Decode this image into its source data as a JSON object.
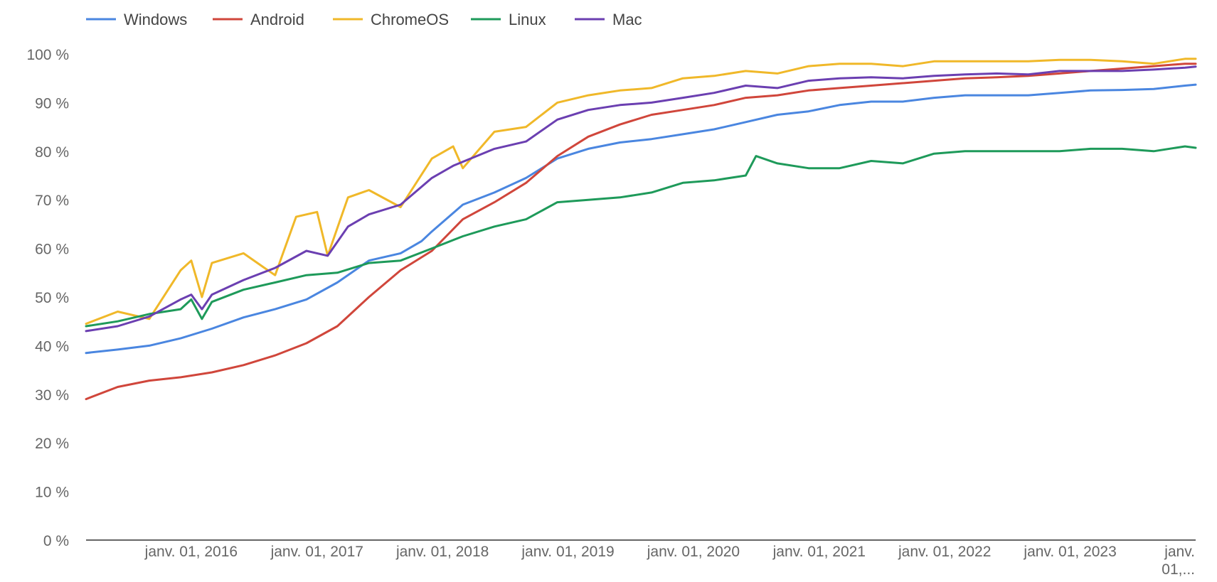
{
  "chart_data": {
    "type": "line",
    "title": "",
    "xlabel": "",
    "ylabel": "",
    "x_range": [
      "2015-03-01",
      "2024-01-01"
    ],
    "ylim": [
      0,
      100
    ],
    "y_unit": "%",
    "grid": false,
    "legend_position": "top-left",
    "y_ticks": [
      {
        "value": 0,
        "label": "0 %"
      },
      {
        "value": 10,
        "label": "10 %"
      },
      {
        "value": 20,
        "label": "20 %"
      },
      {
        "value": 30,
        "label": "30 %"
      },
      {
        "value": 40,
        "label": "40 %"
      },
      {
        "value": 50,
        "label": "50 %"
      },
      {
        "value": 60,
        "label": "60 %"
      },
      {
        "value": 70,
        "label": "70 %"
      },
      {
        "value": 80,
        "label": "80 %"
      },
      {
        "value": 90,
        "label": "90 %"
      },
      {
        "value": 100,
        "label": "100 %"
      }
    ],
    "x_ticks": [
      {
        "date": "2016-01-01",
        "label": "janv. 01, 2016"
      },
      {
        "date": "2017-01-01",
        "label": "janv. 01, 2017"
      },
      {
        "date": "2018-01-01",
        "label": "janv. 01, 2018"
      },
      {
        "date": "2019-01-01",
        "label": "janv. 01, 2019"
      },
      {
        "date": "2020-01-01",
        "label": "janv. 01, 2020"
      },
      {
        "date": "2021-01-01",
        "label": "janv. 01, 2021"
      },
      {
        "date": "2022-01-01",
        "label": "janv. 01, 2022"
      },
      {
        "date": "2023-01-01",
        "label": "janv. 01, 2023"
      },
      {
        "date": "2024-01-01",
        "label": "janv. 01,..."
      }
    ],
    "series": [
      {
        "name": "Windows",
        "color": "#4a86e0",
        "points": [
          [
            "2015-03-01",
            38.5
          ],
          [
            "2015-06-01",
            39.2
          ],
          [
            "2015-09-01",
            40.0
          ],
          [
            "2015-12-01",
            41.5
          ],
          [
            "2016-03-01",
            43.5
          ],
          [
            "2016-06-01",
            45.8
          ],
          [
            "2016-09-01",
            47.5
          ],
          [
            "2016-12-01",
            49.5
          ],
          [
            "2017-03-01",
            53.0
          ],
          [
            "2017-06-01",
            57.5
          ],
          [
            "2017-09-01",
            59.0
          ],
          [
            "2017-11-01",
            61.5
          ],
          [
            "2017-12-01",
            63.5
          ],
          [
            "2018-03-01",
            69.0
          ],
          [
            "2018-06-01",
            71.5
          ],
          [
            "2018-09-01",
            74.5
          ],
          [
            "2018-12-01",
            78.5
          ],
          [
            "2019-03-01",
            80.5
          ],
          [
            "2019-06-01",
            81.8
          ],
          [
            "2019-09-01",
            82.5
          ],
          [
            "2019-12-01",
            83.5
          ],
          [
            "2020-03-01",
            84.5
          ],
          [
            "2020-06-01",
            86.0
          ],
          [
            "2020-09-01",
            87.5
          ],
          [
            "2020-12-01",
            88.2
          ],
          [
            "2021-03-01",
            89.5
          ],
          [
            "2021-06-01",
            90.2
          ],
          [
            "2021-09-01",
            90.2
          ],
          [
            "2021-12-01",
            91.0
          ],
          [
            "2022-03-01",
            91.5
          ],
          [
            "2022-06-01",
            91.5
          ],
          [
            "2022-09-01",
            91.5
          ],
          [
            "2022-12-01",
            92.0
          ],
          [
            "2023-03-01",
            92.5
          ],
          [
            "2023-06-01",
            92.6
          ],
          [
            "2023-09-01",
            92.8
          ],
          [
            "2023-12-01",
            93.5
          ],
          [
            "2024-01-01",
            93.7
          ]
        ]
      },
      {
        "name": "Android",
        "color": "#d0463b",
        "points": [
          [
            "2015-03-01",
            29.0
          ],
          [
            "2015-06-01",
            31.5
          ],
          [
            "2015-09-01",
            32.8
          ],
          [
            "2015-12-01",
            33.5
          ],
          [
            "2016-03-01",
            34.5
          ],
          [
            "2016-06-01",
            36.0
          ],
          [
            "2016-09-01",
            38.0
          ],
          [
            "2016-12-01",
            40.5
          ],
          [
            "2017-03-01",
            44.0
          ],
          [
            "2017-06-01",
            50.0
          ],
          [
            "2017-09-01",
            55.5
          ],
          [
            "2017-12-01",
            59.5
          ],
          [
            "2018-03-01",
            66.0
          ],
          [
            "2018-06-01",
            69.5
          ],
          [
            "2018-09-01",
            73.5
          ],
          [
            "2018-12-01",
            79.0
          ],
          [
            "2019-03-01",
            83.0
          ],
          [
            "2019-06-01",
            85.5
          ],
          [
            "2019-09-01",
            87.5
          ],
          [
            "2019-12-01",
            88.5
          ],
          [
            "2020-03-01",
            89.5
          ],
          [
            "2020-06-01",
            91.0
          ],
          [
            "2020-09-01",
            91.5
          ],
          [
            "2020-12-01",
            92.5
          ],
          [
            "2021-03-01",
            93.0
          ],
          [
            "2021-06-01",
            93.5
          ],
          [
            "2021-09-01",
            94.0
          ],
          [
            "2021-12-01",
            94.5
          ],
          [
            "2022-03-01",
            95.0
          ],
          [
            "2022-06-01",
            95.2
          ],
          [
            "2022-09-01",
            95.5
          ],
          [
            "2022-12-01",
            96.0
          ],
          [
            "2023-03-01",
            96.5
          ],
          [
            "2023-06-01",
            97.0
          ],
          [
            "2023-09-01",
            97.5
          ],
          [
            "2023-12-01",
            98.0
          ],
          [
            "2024-01-01",
            98.0
          ]
        ]
      },
      {
        "name": "ChromeOS",
        "color": "#f0b829",
        "points": [
          [
            "2015-03-01",
            44.5
          ],
          [
            "2015-06-01",
            47.0
          ],
          [
            "2015-09-01",
            45.5
          ],
          [
            "2015-12-01",
            55.5
          ],
          [
            "2016-01-01",
            57.5
          ],
          [
            "2016-02-01",
            50.0
          ],
          [
            "2016-03-01",
            57.0
          ],
          [
            "2016-06-01",
            59.0
          ],
          [
            "2016-08-01",
            56.0
          ],
          [
            "2016-09-01",
            54.5
          ],
          [
            "2016-11-01",
            66.5
          ],
          [
            "2017-01-01",
            67.5
          ],
          [
            "2017-02-01",
            58.5
          ],
          [
            "2017-04-01",
            70.5
          ],
          [
            "2017-06-01",
            72.0
          ],
          [
            "2017-09-01",
            68.5
          ],
          [
            "2017-12-01",
            78.5
          ],
          [
            "2018-02-01",
            81.0
          ],
          [
            "2018-03-01",
            76.5
          ],
          [
            "2018-06-01",
            84.0
          ],
          [
            "2018-09-01",
            85.0
          ],
          [
            "2018-12-01",
            90.0
          ],
          [
            "2019-03-01",
            91.5
          ],
          [
            "2019-06-01",
            92.5
          ],
          [
            "2019-09-01",
            93.0
          ],
          [
            "2019-12-01",
            95.0
          ],
          [
            "2020-03-01",
            95.5
          ],
          [
            "2020-06-01",
            96.5
          ],
          [
            "2020-09-01",
            96.0
          ],
          [
            "2020-12-01",
            97.5
          ],
          [
            "2021-03-01",
            98.0
          ],
          [
            "2021-06-01",
            98.0
          ],
          [
            "2021-09-01",
            97.5
          ],
          [
            "2021-12-01",
            98.5
          ],
          [
            "2022-03-01",
            98.5
          ],
          [
            "2022-06-01",
            98.5
          ],
          [
            "2022-09-01",
            98.5
          ],
          [
            "2022-12-01",
            98.8
          ],
          [
            "2023-03-01",
            98.8
          ],
          [
            "2023-06-01",
            98.5
          ],
          [
            "2023-09-01",
            98.0
          ],
          [
            "2023-12-01",
            99.0
          ],
          [
            "2024-01-01",
            99.0
          ]
        ]
      },
      {
        "name": "Linux",
        "color": "#1e9a5a",
        "points": [
          [
            "2015-03-01",
            44.0
          ],
          [
            "2015-06-01",
            45.0
          ],
          [
            "2015-09-01",
            46.5
          ],
          [
            "2015-12-01",
            47.5
          ],
          [
            "2016-01-01",
            49.5
          ],
          [
            "2016-02-01",
            45.5
          ],
          [
            "2016-03-01",
            49.0
          ],
          [
            "2016-06-01",
            51.5
          ],
          [
            "2016-09-01",
            53.0
          ],
          [
            "2016-12-01",
            54.5
          ],
          [
            "2017-03-01",
            55.0
          ],
          [
            "2017-06-01",
            57.0
          ],
          [
            "2017-09-01",
            57.5
          ],
          [
            "2017-12-01",
            60.0
          ],
          [
            "2018-03-01",
            62.5
          ],
          [
            "2018-06-01",
            64.5
          ],
          [
            "2018-09-01",
            66.0
          ],
          [
            "2018-12-01",
            69.5
          ],
          [
            "2019-03-01",
            70.0
          ],
          [
            "2019-06-01",
            70.5
          ],
          [
            "2019-09-01",
            71.5
          ],
          [
            "2019-12-01",
            73.5
          ],
          [
            "2020-03-01",
            74.0
          ],
          [
            "2020-06-01",
            75.0
          ],
          [
            "2020-07-01",
            79.0
          ],
          [
            "2020-09-01",
            77.5
          ],
          [
            "2020-12-01",
            76.5
          ],
          [
            "2021-03-01",
            76.5
          ],
          [
            "2021-06-01",
            78.0
          ],
          [
            "2021-09-01",
            77.5
          ],
          [
            "2021-12-01",
            79.5
          ],
          [
            "2022-03-01",
            80.0
          ],
          [
            "2022-06-01",
            80.0
          ],
          [
            "2022-09-01",
            80.0
          ],
          [
            "2022-12-01",
            80.0
          ],
          [
            "2023-03-01",
            80.5
          ],
          [
            "2023-06-01",
            80.5
          ],
          [
            "2023-09-01",
            80.0
          ],
          [
            "2023-12-01",
            81.0
          ],
          [
            "2024-01-01",
            80.7
          ]
        ]
      },
      {
        "name": "Mac",
        "color": "#6b3fb1",
        "points": [
          [
            "2015-03-01",
            43.0
          ],
          [
            "2015-06-01",
            44.0
          ],
          [
            "2015-09-01",
            46.0
          ],
          [
            "2015-12-01",
            49.5
          ],
          [
            "2016-01-01",
            50.5
          ],
          [
            "2016-02-01",
            47.5
          ],
          [
            "2016-03-01",
            50.5
          ],
          [
            "2016-06-01",
            53.5
          ],
          [
            "2016-09-01",
            56.0
          ],
          [
            "2016-12-01",
            59.5
          ],
          [
            "2017-02-01",
            58.5
          ],
          [
            "2017-04-01",
            64.5
          ],
          [
            "2017-06-01",
            67.0
          ],
          [
            "2017-09-01",
            69.0
          ],
          [
            "2017-12-01",
            74.5
          ],
          [
            "2018-02-01",
            77.0
          ],
          [
            "2018-06-01",
            80.5
          ],
          [
            "2018-09-01",
            82.0
          ],
          [
            "2018-12-01",
            86.5
          ],
          [
            "2019-03-01",
            88.5
          ],
          [
            "2019-06-01",
            89.5
          ],
          [
            "2019-09-01",
            90.0
          ],
          [
            "2019-12-01",
            91.0
          ],
          [
            "2020-03-01",
            92.0
          ],
          [
            "2020-06-01",
            93.5
          ],
          [
            "2020-09-01",
            93.0
          ],
          [
            "2020-12-01",
            94.5
          ],
          [
            "2021-03-01",
            95.0
          ],
          [
            "2021-06-01",
            95.2
          ],
          [
            "2021-09-01",
            95.0
          ],
          [
            "2021-12-01",
            95.5
          ],
          [
            "2022-03-01",
            95.8
          ],
          [
            "2022-06-01",
            96.0
          ],
          [
            "2022-09-01",
            95.8
          ],
          [
            "2022-12-01",
            96.5
          ],
          [
            "2023-03-01",
            96.5
          ],
          [
            "2023-06-01",
            96.5
          ],
          [
            "2023-09-01",
            96.8
          ],
          [
            "2023-12-01",
            97.2
          ],
          [
            "2024-01-01",
            97.4
          ]
        ]
      }
    ]
  }
}
